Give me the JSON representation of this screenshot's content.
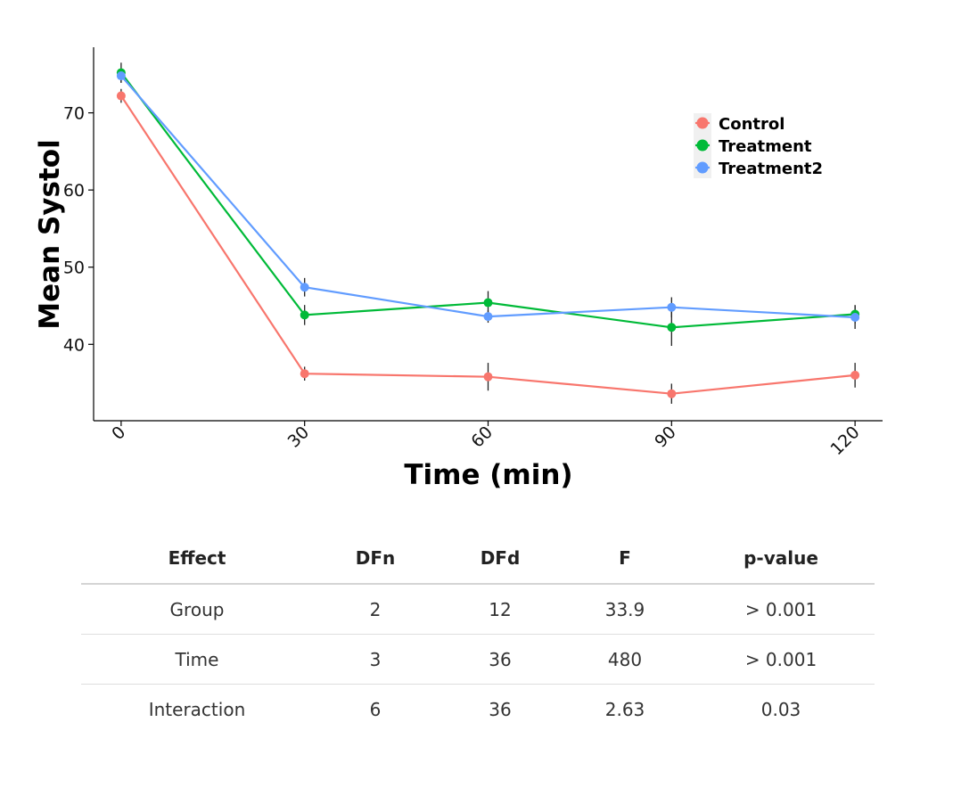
{
  "chart_data": {
    "type": "line",
    "title": "",
    "xlabel": "Time (min)",
    "ylabel": "Mean Systol",
    "x": [
      0,
      30,
      60,
      90,
      120
    ],
    "x_tick_labels": [
      "0",
      "30",
      "60",
      "90",
      "120"
    ],
    "xlim": [
      -4.5,
      124.5
    ],
    "y_ticks": [
      40,
      50,
      60,
      70
    ],
    "y_tick_labels": [
      "40",
      "50",
      "60",
      "70"
    ],
    "ylim": [
      30.1,
      78.5
    ],
    "grid": false,
    "legend_position": "top-right",
    "series": [
      {
        "name": "Control",
        "color": "#F8766D",
        "values": [
          72.2,
          36.2,
          35.8,
          33.6,
          36.0
        ],
        "errors": [
          0.9,
          0.9,
          1.8,
          1.3,
          1.6
        ]
      },
      {
        "name": "Treatment",
        "color": "#00BA38",
        "values": [
          75.2,
          43.8,
          45.4,
          42.2,
          43.9
        ],
        "errors": [
          1.3,
          1.3,
          1.5,
          2.4,
          1.2
        ]
      },
      {
        "name": "Treatment2",
        "color": "#619CFF",
        "values": [
          74.8,
          47.4,
          43.6,
          44.8,
          43.5
        ],
        "errors": [
          0.9,
          1.2,
          0.8,
          1.3,
          1.5
        ]
      }
    ]
  },
  "table": {
    "columns": [
      "Effect",
      "DFn",
      "DFd",
      "F",
      "p-value"
    ],
    "rows": [
      [
        "Group",
        "2",
        "12",
        "33.9",
        "> 0.001"
      ],
      [
        "Time",
        "3",
        "36",
        "480",
        "> 0.001"
      ],
      [
        "Interaction",
        "6",
        "36",
        "2.63",
        "0.03"
      ]
    ]
  }
}
